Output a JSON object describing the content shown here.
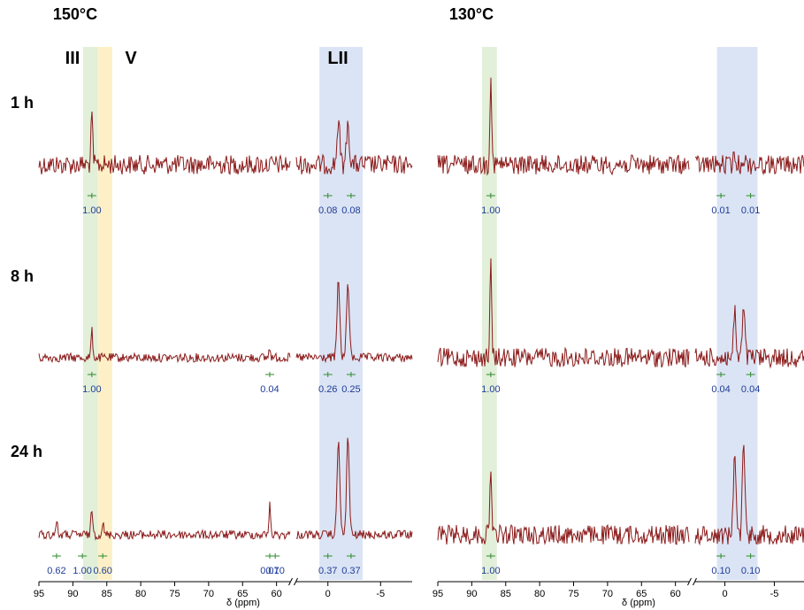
{
  "chart_data": {
    "type": "line",
    "x_axis": {
      "label": "δ (ppm)",
      "ticks_left": [
        "95",
        "90",
        "85",
        "80",
        "75",
        "70",
        "65",
        "60",
        "0",
        "-5"
      ],
      "ticks_right": [
        "95",
        "90",
        "85",
        "80",
        "75",
        "70",
        "65",
        "60",
        "0",
        "-5"
      ]
    },
    "region_labels": [
      "III",
      "V",
      "LII"
    ],
    "region_colors": {
      "III": "#e2efd9",
      "V": "#fdf0c6",
      "LII": "#dbe4f4"
    },
    "trace_color": "#8b1a1a",
    "integral_color": "#1f3c99",
    "integral_bracket_color": "#2e8b2e",
    "panels": [
      {
        "id": "p150",
        "title": "150°C",
        "rows": [
          {
            "time": "1 h",
            "peaks": [
              {
                "ppm": 87.2,
                "height": 1.0
              },
              {
                "ppm": -1.0,
                "height": 0.92
              },
              {
                "ppm": -1.9,
                "height": 0.9
              }
            ],
            "integrals": [
              "1.00",
              "0.08",
              "0.08"
            ]
          },
          {
            "time": "8 h",
            "peaks": [
              {
                "ppm": 87.2,
                "height": 0.55
              },
              {
                "ppm": 61.0,
                "height": 0.2
              },
              {
                "ppm": -1.0,
                "height": 1.6
              },
              {
                "ppm": -1.9,
                "height": 1.55
              }
            ],
            "integrals": [
              "1.00",
              "0.04",
              "0.26",
              "0.25"
            ]
          },
          {
            "time": "24 h",
            "peaks": [
              {
                "ppm": 92.4,
                "height": 0.3
              },
              {
                "ppm": 87.2,
                "height": 0.55
              },
              {
                "ppm": 85.6,
                "height": 0.25
              },
              {
                "ppm": 61.0,
                "height": 0.6
              },
              {
                "ppm": 5.0,
                "height": 0.55
              },
              {
                "ppm": -1.0,
                "height": 2.0
              },
              {
                "ppm": -1.9,
                "height": 2.0
              }
            ],
            "integrals": [
              "0.62",
              "1.00",
              "0.60",
              "0.07",
              "0.10",
              "0.37",
              "0.37"
            ]
          }
        ]
      },
      {
        "id": "p130",
        "title": "130°C",
        "rows": [
          {
            "time": "1 h",
            "peaks": [
              {
                "ppm": 87.2,
                "height": 1.9
              },
              {
                "ppm": -1.0,
                "height": 0.15
              },
              {
                "ppm": -1.9,
                "height": 0.15
              }
            ],
            "integrals": [
              "1.00",
              "0.01",
              "0.01"
            ]
          },
          {
            "time": "8 h",
            "peaks": [
              {
                "ppm": 87.2,
                "height": 1.9
              },
              {
                "ppm": -1.0,
                "height": 0.9
              },
              {
                "ppm": -1.9,
                "height": 1.0
              }
            ],
            "integrals": [
              "1.00",
              "0.04",
              "0.04"
            ]
          },
          {
            "time": "24 h",
            "peaks": [
              {
                "ppm": 87.2,
                "height": 1.5
              },
              {
                "ppm": -1.0,
                "height": 1.8
              },
              {
                "ppm": -1.9,
                "height": 2.0
              }
            ],
            "integrals": [
              "1.00",
              "0.10",
              "0.10"
            ]
          }
        ]
      }
    ],
    "grid": false
  }
}
